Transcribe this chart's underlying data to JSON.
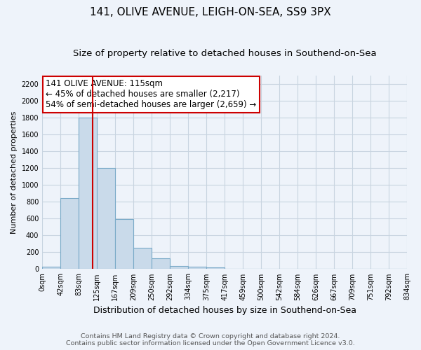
{
  "title": "141, OLIVE AVENUE, LEIGH-ON-SEA, SS9 3PX",
  "subtitle": "Size of property relative to detached houses in Southend-on-Sea",
  "xlabel": "Distribution of detached houses by size in Southend-on-Sea",
  "ylabel": "Number of detached properties",
  "footnote1": "Contains HM Land Registry data © Crown copyright and database right 2024.",
  "footnote2": "Contains public sector information licensed under the Open Government Licence v3.0.",
  "bin_labels": [
    "0sqm",
    "42sqm",
    "83sqm",
    "125sqm",
    "167sqm",
    "209sqm",
    "250sqm",
    "292sqm",
    "334sqm",
    "375sqm",
    "417sqm",
    "459sqm",
    "500sqm",
    "542sqm",
    "584sqm",
    "626sqm",
    "667sqm",
    "709sqm",
    "751sqm",
    "792sqm",
    "834sqm"
  ],
  "bar_values": [
    25,
    840,
    1800,
    1200,
    590,
    255,
    125,
    40,
    25,
    20,
    0,
    0,
    0,
    0,
    0,
    0,
    0,
    0,
    0,
    0
  ],
  "bar_color": "#c9daea",
  "bar_edge_color": "#7aaac8",
  "vline_color": "#cc0000",
  "vline_x": 2.75,
  "annotation_line1": "141 OLIVE AVENUE: 115sqm",
  "annotation_line2": "← 45% of detached houses are smaller (2,217)",
  "annotation_line3": "54% of semi-detached houses are larger (2,659) →",
  "annotation_box_color": "white",
  "annotation_edge_color": "#cc0000",
  "ylim": [
    0,
    2300
  ],
  "yticks": [
    0,
    200,
    400,
    600,
    800,
    1000,
    1200,
    1400,
    1600,
    1800,
    2000,
    2200
  ],
  "title_fontsize": 11,
  "subtitle_fontsize": 9.5,
  "xlabel_fontsize": 9,
  "ylabel_fontsize": 8,
  "tick_fontsize": 7,
  "annotation_fontsize": 8.5,
  "footnote_fontsize": 6.8,
  "grid_color": "#c8d4e0",
  "background_color": "#eef3fa"
}
